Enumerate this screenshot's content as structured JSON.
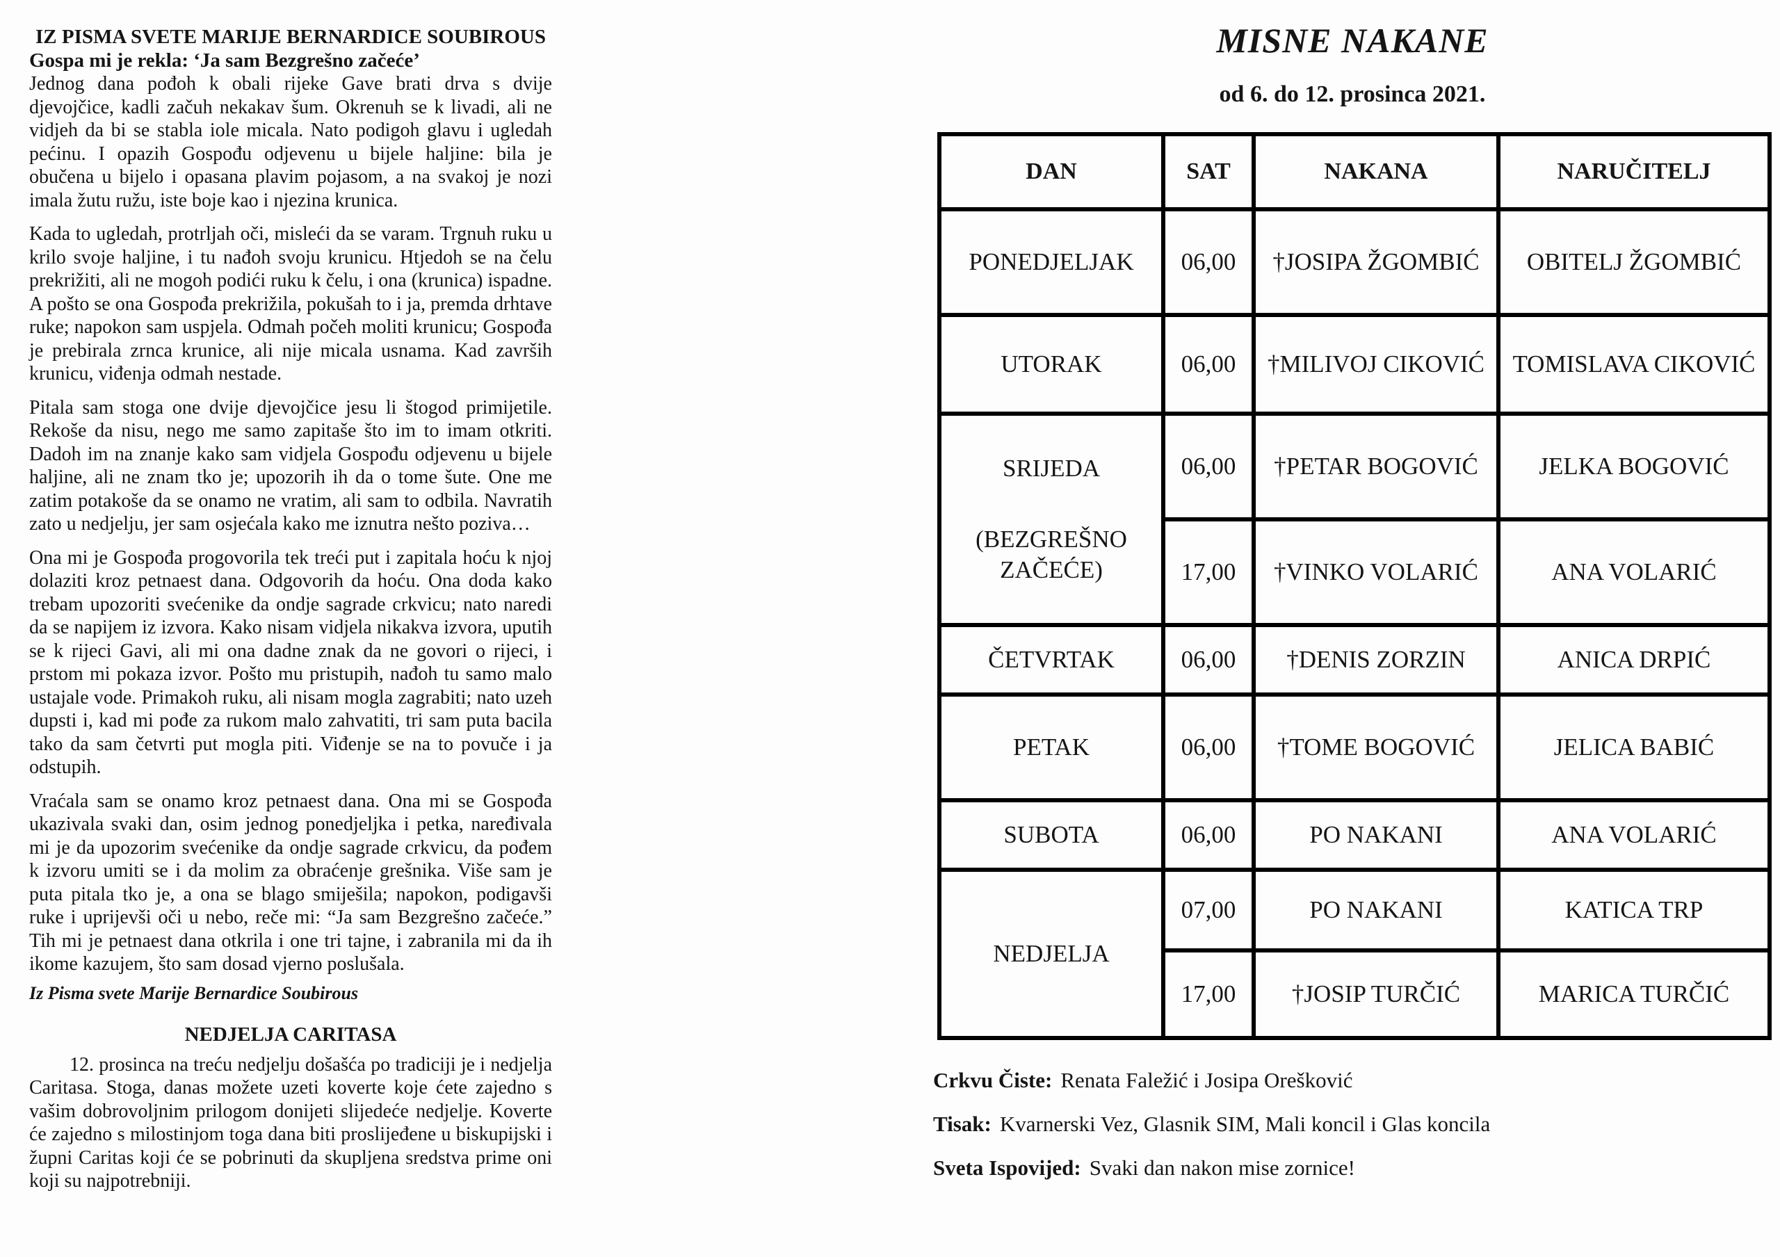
{
  "left_page": {
    "title": "IZ PISMA SVETE MARIJE BERNARDICE SOUBIROUS",
    "subtitle": "Gospa mi je rekla: ‘Ja sam Bezgrešno začeće’",
    "paragraphs": [
      "Jednog dana pođoh k obali rijeke Gave brati drva s dvije djevojčice, kadli začuh nekakav šum. Okrenuh se k livadi, ali ne vidjeh da bi se stabla iole micala. Nato podigoh glavu i ugledah pećinu. I opazih Gospođu odjevenu u bijele haljine: bila je obučena u bijelo i opasana plavim pojasom, a na svakoj je nozi imala žutu ružu, iste boje kao i njezina krunica.",
      "Kada to ugledah, protrljah oči, misleći da se varam. Trgnuh ruku u krilo svoje haljine, i tu nađoh svoju krunicu. Htjedoh se na čelu prekrižiti, ali ne mogoh podići ruku k čelu, i ona (krunica) ispadne. A pošto se ona Gospođa prekrižila, pokušah to i ja, premda drhtave ruke; napokon sam uspjela. Odmah počeh moliti krunicu; Gospođa je prebirala zrnca krunice, ali nije micala usnama. Kad završih krunicu, viđenja odmah nestade.",
      "Pitala sam stoga one dvije djevojčice jesu li štogod primijetile. Rekoše da nisu, nego me samo zapitaše što im to imam otkriti. Dadoh im na znanje kako sam vidjela Gospođu odjevenu u bijele haljine, ali ne znam tko je; upozorih ih da o tome šute. One me zatim potakoše da se onamo ne vratim, ali sam to odbila. Navratih zato u nedjelju, jer sam osjećala kako me iznutra nešto poziva…",
      "Ona mi je Gospođa progovorila tek treći put i zapitala hoću k njoj dolaziti kroz petnaest dana. Odgovorih da hoću. Ona doda kako trebam upozoriti svećenike da ondje sagrade crkvicu; nato naredi da se napijem iz izvora. Kako nisam vidjela nikakva izvora, uputih se k rijeci Gavi, ali mi ona dadne znak da ne govori o rijeci, i prstom mi pokaza izvor. Pošto mu pristupih, nađoh tu samo malo ustajale vode. Primakoh ruku, ali nisam mogla zagrabiti; nato uzeh dupsti i, kad mi pođe za rukom malo zahvatiti, tri sam puta bacila tako da sam četvrti put mogla piti. Viđenje se na to povuče i ja odstupih.",
      "Vraćala sam se onamo kroz petnaest dana. Ona mi se Gospođa ukazivala svaki dan, osim jednog ponedjeljka i petka, naređivala mi je da upozorim svećenike da ondje sagrade crkvicu, da pođem k izvoru umiti se i da molim za obraćenje grešnika. Više sam je puta pitala tko je, a ona se blago smiješila; napokon, podigavši ruke i uprijevši oči u nebo, reče mi: “Ja sam Bezgrešno začeće.” Tih mi je petnaest dana otkrila i one tri tajne, i zabranila mi da ih ikome kazujem, što sam dosad vjerno poslušala."
    ],
    "attribution": "Iz Pisma svete Marije Bernardice Soubirous",
    "caritas": {
      "title": "NEDJELJA CARITASA",
      "paragraph": "12. prosinca na treću nedjelju došašća po tradiciji je i nedjelja Caritasa. Stoga, danas možete uzeti koverte koje ćete zajedno s vašim dobrovoljnim prilogom donijeti slijedeće nedjelje. Koverte će zajedno s milostinjom toga dana biti proslijeđene u biskupijski i župni Caritas koji će se pobrinuti da skupljena sredstva prime oni koji su najpotrebniji."
    }
  },
  "right_page": {
    "title": "MISNE NAKANE",
    "subtitle": "od 6. do 12. prosinca 2021.",
    "table": {
      "headers": [
        "DAN",
        "SAT",
        "NAKANA",
        "NARUČITELJ"
      ],
      "rows": [
        {
          "day": "PONEDJELJAK",
          "time": "06,00",
          "intention": "†JOSIPA ŽGOMBIĆ",
          "requester": "OBITELJ ŽGOMBIĆ"
        },
        {
          "day": "UTORAK",
          "time": "06,00",
          "intention": "†MILIVOJ CIKOVIĆ",
          "requester": "TOMISLAVA CIKOVIĆ"
        },
        {
          "day": "SRIJEDA",
          "day_note": "(BEZGREŠNO ZAČEĆE)",
          "time": "06,00",
          "intention": "†PETAR BOGOVIĆ",
          "requester": "JELKA BOGOVIĆ"
        },
        {
          "time": "17,00",
          "intention": "†VINKO VOLARIĆ",
          "requester": "ANA VOLARIĆ"
        },
        {
          "day": "ČETVRTAK",
          "time": "06,00",
          "intention": "†DENIS ZORZIN",
          "requester": "ANICA DRPIĆ"
        },
        {
          "day": "PETAK",
          "time": "06,00",
          "intention": "†TOME BOGOVIĆ",
          "requester": "JELICA BABIĆ"
        },
        {
          "day": "SUBOTA",
          "time": "06,00",
          "intention": "PO NAKANI",
          "requester": "ANA VOLARIĆ"
        },
        {
          "day": "NEDJELJA",
          "time": "07,00",
          "intention": "PO NAKANI",
          "requester": "KATICA TRP"
        },
        {
          "time": "17,00",
          "intention": "†JOSIP TURČIĆ",
          "requester": "MARICA TURČIĆ"
        }
      ]
    },
    "footer": [
      {
        "label": "Crkvu Čiste:",
        "text": "Renata Faležić i Josipa Orešković"
      },
      {
        "label": "Tisak:",
        "text": "Kvarnerski Vez, Glasnik SIM, Mali koncil i Glas koncila"
      },
      {
        "label": "Sveta Ispovijed:",
        "text": "Svaki dan nakon mise zornice!"
      }
    ]
  }
}
